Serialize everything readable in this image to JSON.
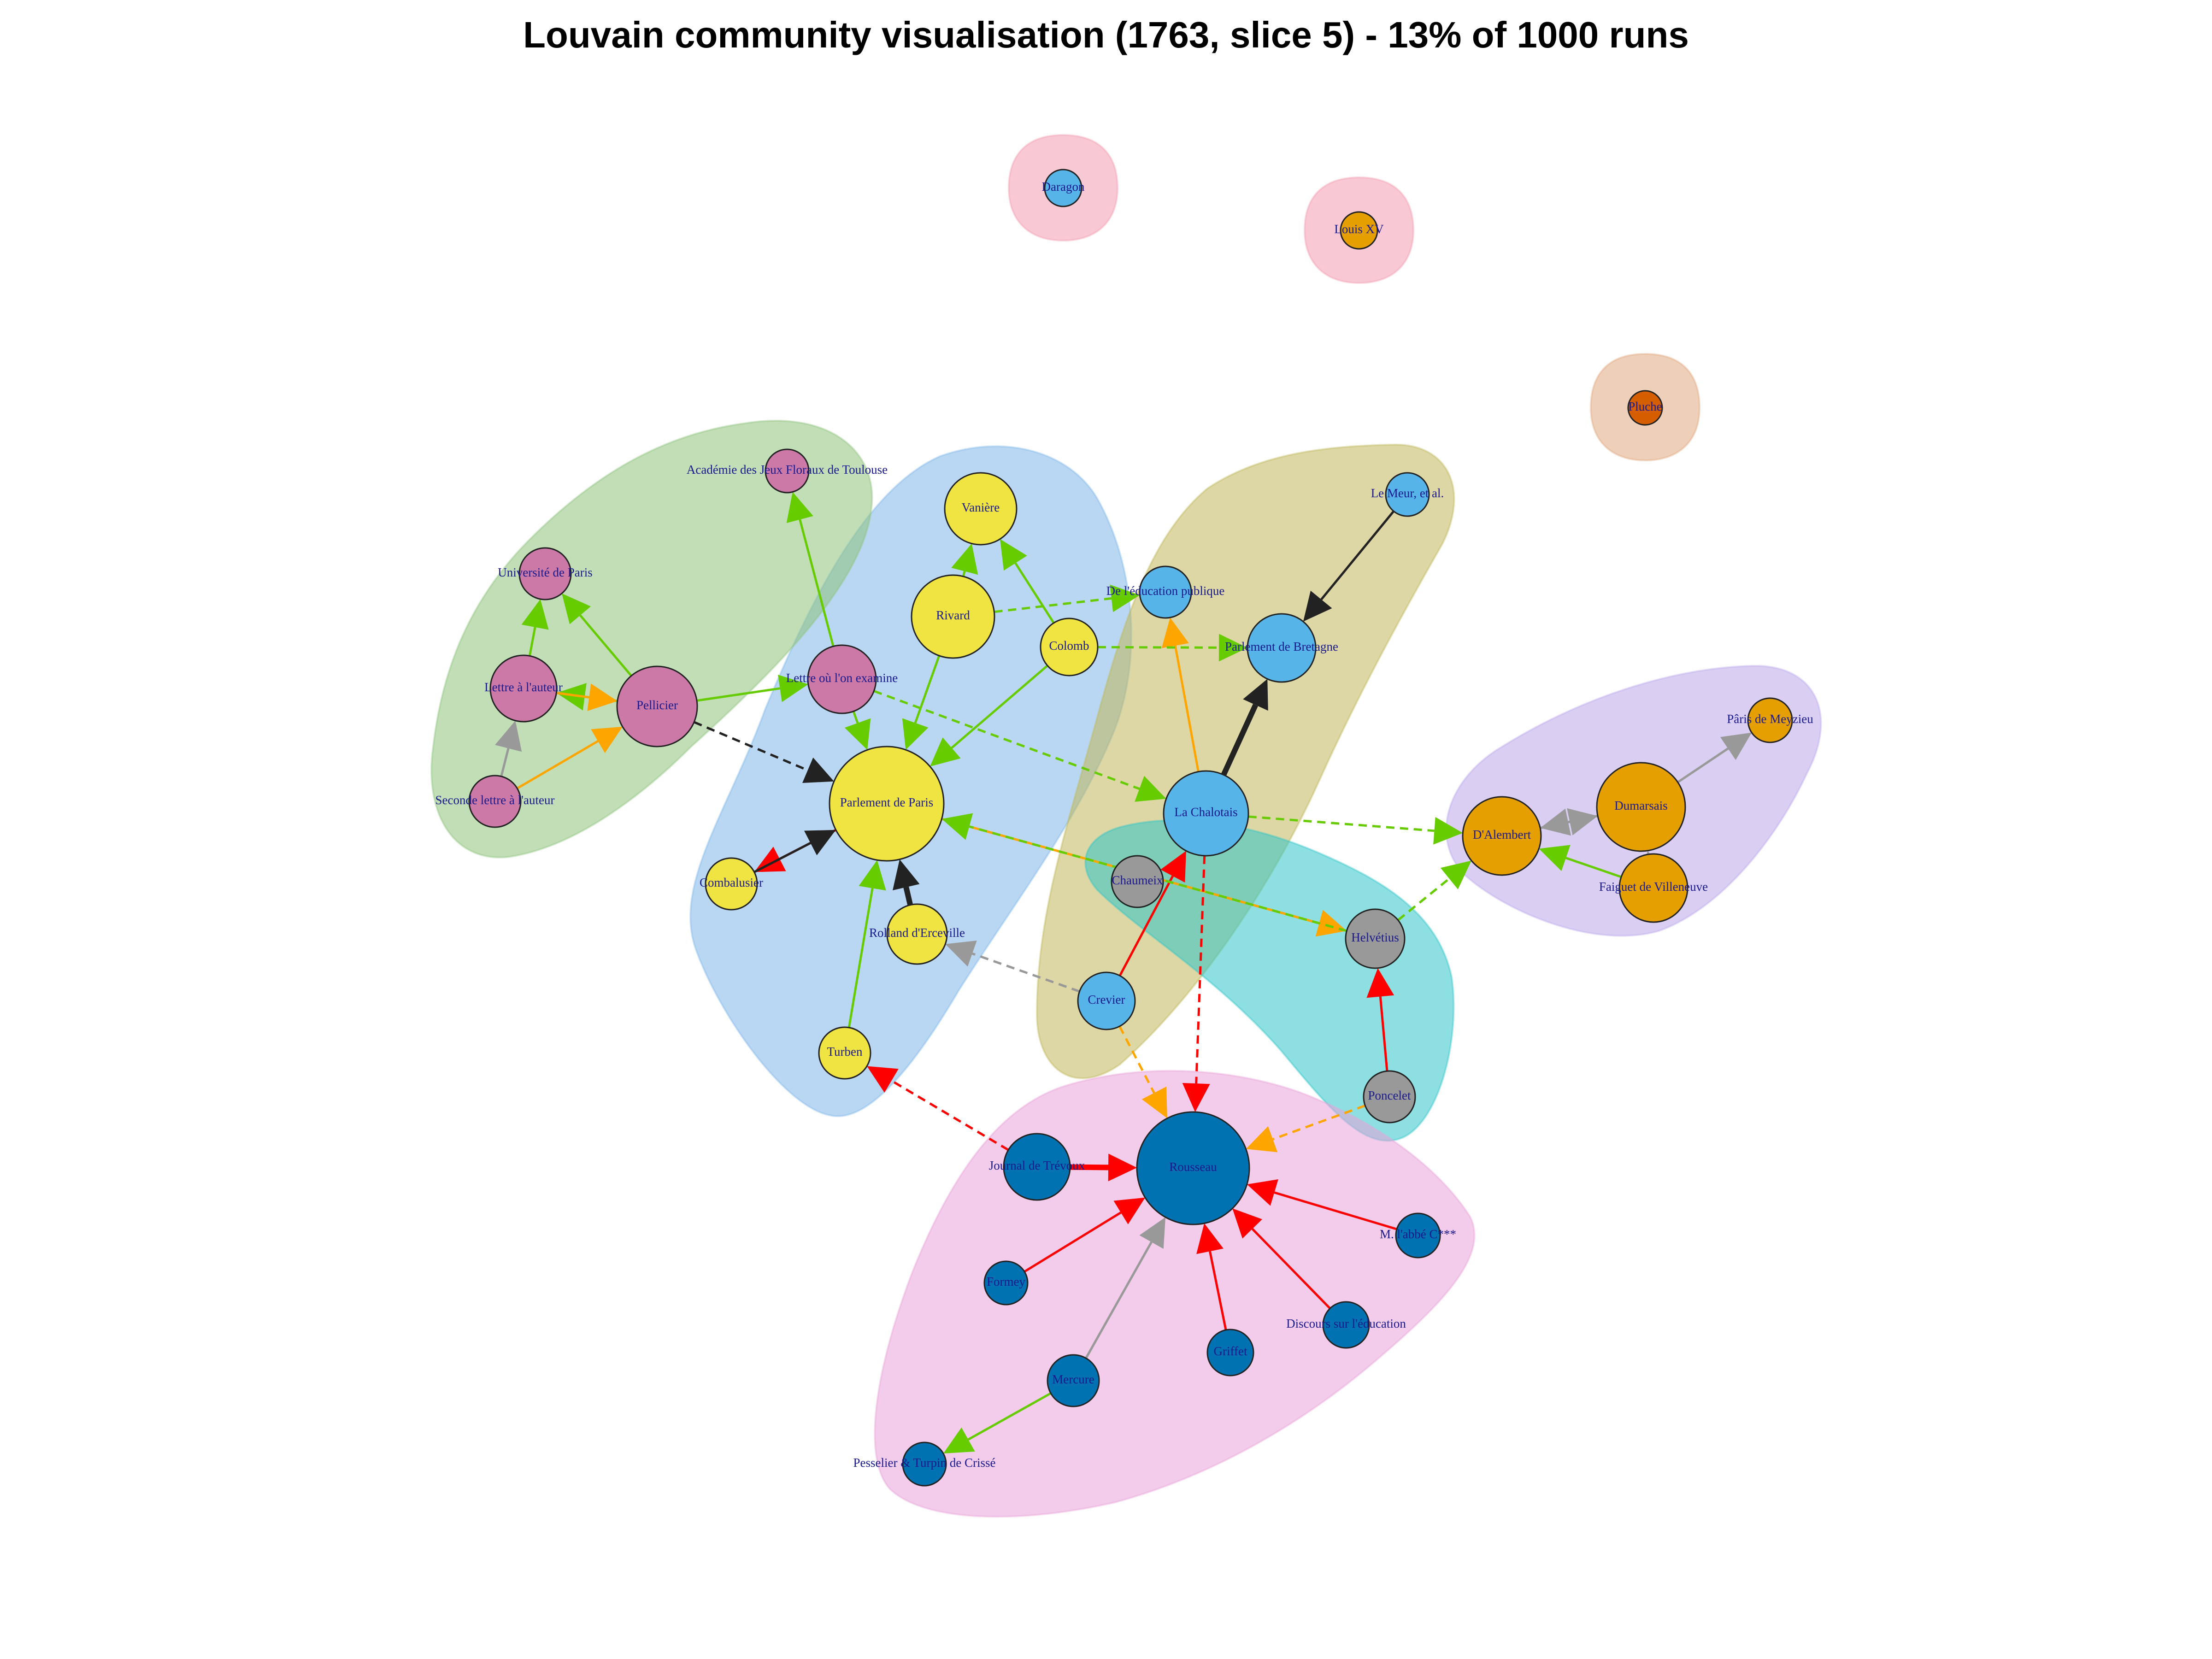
{
  "title": "Louvain community visualisation (1763, slice 5) - 13% of 1000 runs",
  "colors": {
    "yellow": "#f0e442",
    "pink": "#cc79a7",
    "sky": "#56b4e9",
    "orange": "#e69f00",
    "grey": "#999999",
    "blue": "#0072b2",
    "vermillion": "#d55e00",
    "edge_green": "#66cc00",
    "edge_red": "#ff0000",
    "edge_orange": "#ffa500",
    "edge_black": "#222222",
    "edge_grey": "#999999"
  },
  "communities": [
    {
      "id": "paris",
      "fill": "#7fb6e8"
    },
    {
      "id": "academic",
      "fill": "#8ec27c"
    },
    {
      "id": "bretagne",
      "fill": "#bfb75a"
    },
    {
      "id": "dalembert",
      "fill": "#bba8ea"
    },
    {
      "id": "helvetius",
      "fill": "#2fc4c9"
    },
    {
      "id": "rousseau",
      "fill": "#e8a3d8"
    },
    {
      "id": "daragon",
      "fill": "#f29db0"
    },
    {
      "id": "louisxv",
      "fill": "#f29db0"
    },
    {
      "id": "pluche",
      "fill": "#e0a77f"
    }
  ],
  "nodes": [
    {
      "id": "daragon",
      "label": "Daragon",
      "color": "sky"
    },
    {
      "id": "louisxv",
      "label": "Louis XV",
      "color": "orange"
    },
    {
      "id": "pluche",
      "label": "Pluche",
      "color": "vermillion"
    },
    {
      "id": "academie",
      "label": "Académie des Jeux Floraux de Toulouse",
      "color": "pink"
    },
    {
      "id": "vaniere",
      "label": "Vanière",
      "color": "yellow"
    },
    {
      "id": "lemeur",
      "label": "Le Meur, et al.",
      "color": "sky"
    },
    {
      "id": "univparis",
      "label": "Université de Paris",
      "color": "pink"
    },
    {
      "id": "deleducation",
      "label": "De l'éducation publique",
      "color": "sky"
    },
    {
      "id": "rivard",
      "label": "Rivard",
      "color": "yellow"
    },
    {
      "id": "colomb",
      "label": "Colomb",
      "color": "yellow"
    },
    {
      "id": "parlbretagne",
      "label": "Parlement de Bretagne",
      "color": "sky"
    },
    {
      "id": "lettreauteur",
      "label": "Lettre à l'auteur",
      "color": "pink"
    },
    {
      "id": "pellicier",
      "label": "Pellicier",
      "color": "pink"
    },
    {
      "id": "lettreou",
      "label": "Lettre où l'on examine",
      "color": "pink"
    },
    {
      "id": "parisdemeyzieu",
      "label": "Pâris de Meyzieu",
      "color": "orange"
    },
    {
      "id": "seconde",
      "label": "Seconde lettre à l'auteur",
      "color": "pink"
    },
    {
      "id": "parlparis",
      "label": "Parlement de Paris",
      "color": "yellow"
    },
    {
      "id": "lachalotais",
      "label": "La Chalotais",
      "color": "sky"
    },
    {
      "id": "dumarsais",
      "label": "Dumarsais",
      "color": "orange"
    },
    {
      "id": "dalembert",
      "label": "D'Alembert",
      "color": "orange"
    },
    {
      "id": "combalusier",
      "label": "Combalusier",
      "color": "yellow"
    },
    {
      "id": "chaumeix",
      "label": "Chaumeix",
      "color": "grey"
    },
    {
      "id": "faiguet",
      "label": "Faiguet de Villeneuve",
      "color": "orange"
    },
    {
      "id": "rolland",
      "label": "Rolland d'Erceville",
      "color": "yellow"
    },
    {
      "id": "helvetius",
      "label": "Helvétius",
      "color": "grey"
    },
    {
      "id": "crevier",
      "label": "Crevier",
      "color": "sky"
    },
    {
      "id": "turben",
      "label": "Turben",
      "color": "yellow"
    },
    {
      "id": "poncelet",
      "label": "Poncelet",
      "color": "grey"
    },
    {
      "id": "journal",
      "label": "Journal de Trévoux",
      "color": "blue"
    },
    {
      "id": "rousseau",
      "label": "Rousseau",
      "color": "blue"
    },
    {
      "id": "mlabbe",
      "label": "M. l'abbé C***",
      "color": "blue"
    },
    {
      "id": "formey",
      "label": "Formey",
      "color": "blue"
    },
    {
      "id": "discours",
      "label": "Discours sur l'éducation",
      "color": "blue"
    },
    {
      "id": "griffet",
      "label": "Griffet",
      "color": "blue"
    },
    {
      "id": "mercure",
      "label": "Mercure",
      "color": "blue"
    },
    {
      "id": "pesselier",
      "label": "Pesselier & Turpin de Crissé",
      "color": "blue"
    }
  ],
  "edges": [
    {
      "from": "lemeur",
      "to": "parlbretagne",
      "color": "edge_black",
      "style": "solid"
    },
    {
      "from": "lachalotais",
      "to": "parlbretagne",
      "color": "edge_black",
      "style": "solid",
      "heavy": true
    },
    {
      "from": "lachalotais",
      "to": "deleducation",
      "color": "edge_orange",
      "style": "solid"
    },
    {
      "from": "colomb",
      "to": "parlbretagne",
      "color": "edge_green",
      "style": "dashed"
    },
    {
      "from": "rivard",
      "to": "deleducation",
      "color": "edge_green",
      "style": "dashed"
    },
    {
      "from": "rivard",
      "to": "vaniere",
      "color": "edge_green",
      "style": "solid"
    },
    {
      "from": "colomb",
      "to": "vaniere",
      "color": "edge_green",
      "style": "solid"
    },
    {
      "from": "rivard",
      "to": "parlparis",
      "color": "edge_green",
      "style": "solid"
    },
    {
      "from": "colomb",
      "to": "parlparis",
      "color": "edge_green",
      "style": "solid"
    },
    {
      "from": "lettreou",
      "to": "academie",
      "color": "edge_green",
      "style": "solid"
    },
    {
      "from": "lettreou",
      "to": "parlparis",
      "color": "edge_green",
      "style": "solid"
    },
    {
      "from": "pellicier",
      "to": "lettreou",
      "color": "edge_green",
      "style": "solid"
    },
    {
      "from": "pellicier",
      "to": "univparis",
      "color": "edge_green",
      "style": "solid"
    },
    {
      "from": "lettreauteur",
      "to": "univparis",
      "color": "edge_green",
      "style": "solid"
    },
    {
      "from": "pellicier",
      "to": "lettreauteur",
      "color": "edge_green",
      "style": "solid"
    },
    {
      "from": "lettreauteur",
      "to": "pellicier",
      "color": "edge_orange",
      "style": "solid"
    },
    {
      "from": "seconde",
      "to": "pellicier",
      "color": "edge_orange",
      "style": "solid"
    },
    {
      "from": "seconde",
      "to": "lettreauteur",
      "color": "edge_grey",
      "style": "solid"
    },
    {
      "from": "pellicier",
      "to": "parlparis",
      "color": "edge_black",
      "style": "dashed"
    },
    {
      "from": "lettreou",
      "to": "lachalotais",
      "color": "edge_green",
      "style": "dashed"
    },
    {
      "from": "parlparis",
      "to": "combalusier",
      "color": "edge_red",
      "style": "solid"
    },
    {
      "from": "combalusier",
      "to": "parlparis",
      "color": "edge_black",
      "style": "solid"
    },
    {
      "from": "rolland",
      "to": "parlparis",
      "color": "edge_black",
      "style": "solid",
      "heavy": true
    },
    {
      "from": "turben",
      "to": "parlparis",
      "color": "edge_green",
      "style": "solid"
    },
    {
      "from": "crevier",
      "to": "rolland",
      "color": "edge_grey",
      "style": "dashed"
    },
    {
      "from": "crevier",
      "to": "lachalotais",
      "color": "edge_red",
      "style": "solid"
    },
    {
      "from": "lachalotais",
      "to": "dalembert",
      "color": "edge_green",
      "style": "dashed"
    },
    {
      "from": "parlparis",
      "to": "helvetius",
      "color": "edge_orange",
      "style": "solid"
    },
    {
      "from": "helvetius",
      "to": "parlparis",
      "color": "edge_green",
      "style": "dashed"
    },
    {
      "from": "helvetius",
      "to": "dalembert",
      "color": "edge_green",
      "style": "dashed"
    },
    {
      "from": "poncelet",
      "to": "helvetius",
      "color": "edge_red",
      "style": "solid"
    },
    {
      "from": "dumarsais",
      "to": "dalembert",
      "color": "edge_grey",
      "style": "solid"
    },
    {
      "from": "dalembert",
      "to": "dumarsais",
      "color": "edge_grey",
      "style": "solid"
    },
    {
      "from": "dumarsais",
      "to": "parisdemeyzieu",
      "color": "edge_grey",
      "style": "solid"
    },
    {
      "from": "faiguet",
      "to": "dumarsais",
      "color": "edge_grey",
      "style": "solid"
    },
    {
      "from": "faiguet",
      "to": "dalembert",
      "color": "edge_green",
      "style": "solid"
    },
    {
      "from": "lachalotais",
      "to": "rousseau",
      "color": "edge_red",
      "style": "dashed"
    },
    {
      "from": "crevier",
      "to": "rousseau",
      "color": "edge_orange",
      "style": "dashed"
    },
    {
      "from": "poncelet",
      "to": "rousseau",
      "color": "edge_orange",
      "style": "dashed"
    },
    {
      "from": "journal",
      "to": "turben",
      "color": "edge_red",
      "style": "dashed"
    },
    {
      "from": "journal",
      "to": "rousseau",
      "color": "edge_red",
      "style": "solid",
      "heavy": true
    },
    {
      "from": "mlabbe",
      "to": "rousseau",
      "color": "edge_red",
      "style": "solid"
    },
    {
      "from": "formey",
      "to": "rousseau",
      "color": "edge_red",
      "style": "solid"
    },
    {
      "from": "discours",
      "to": "rousseau",
      "color": "edge_red",
      "style": "solid"
    },
    {
      "from": "griffet",
      "to": "rousseau",
      "color": "edge_red",
      "style": "solid"
    },
    {
      "from": "mercure",
      "to": "rousseau",
      "color": "edge_grey",
      "style": "solid"
    },
    {
      "from": "mercure",
      "to": "pesselier",
      "color": "edge_green",
      "style": "solid"
    }
  ]
}
